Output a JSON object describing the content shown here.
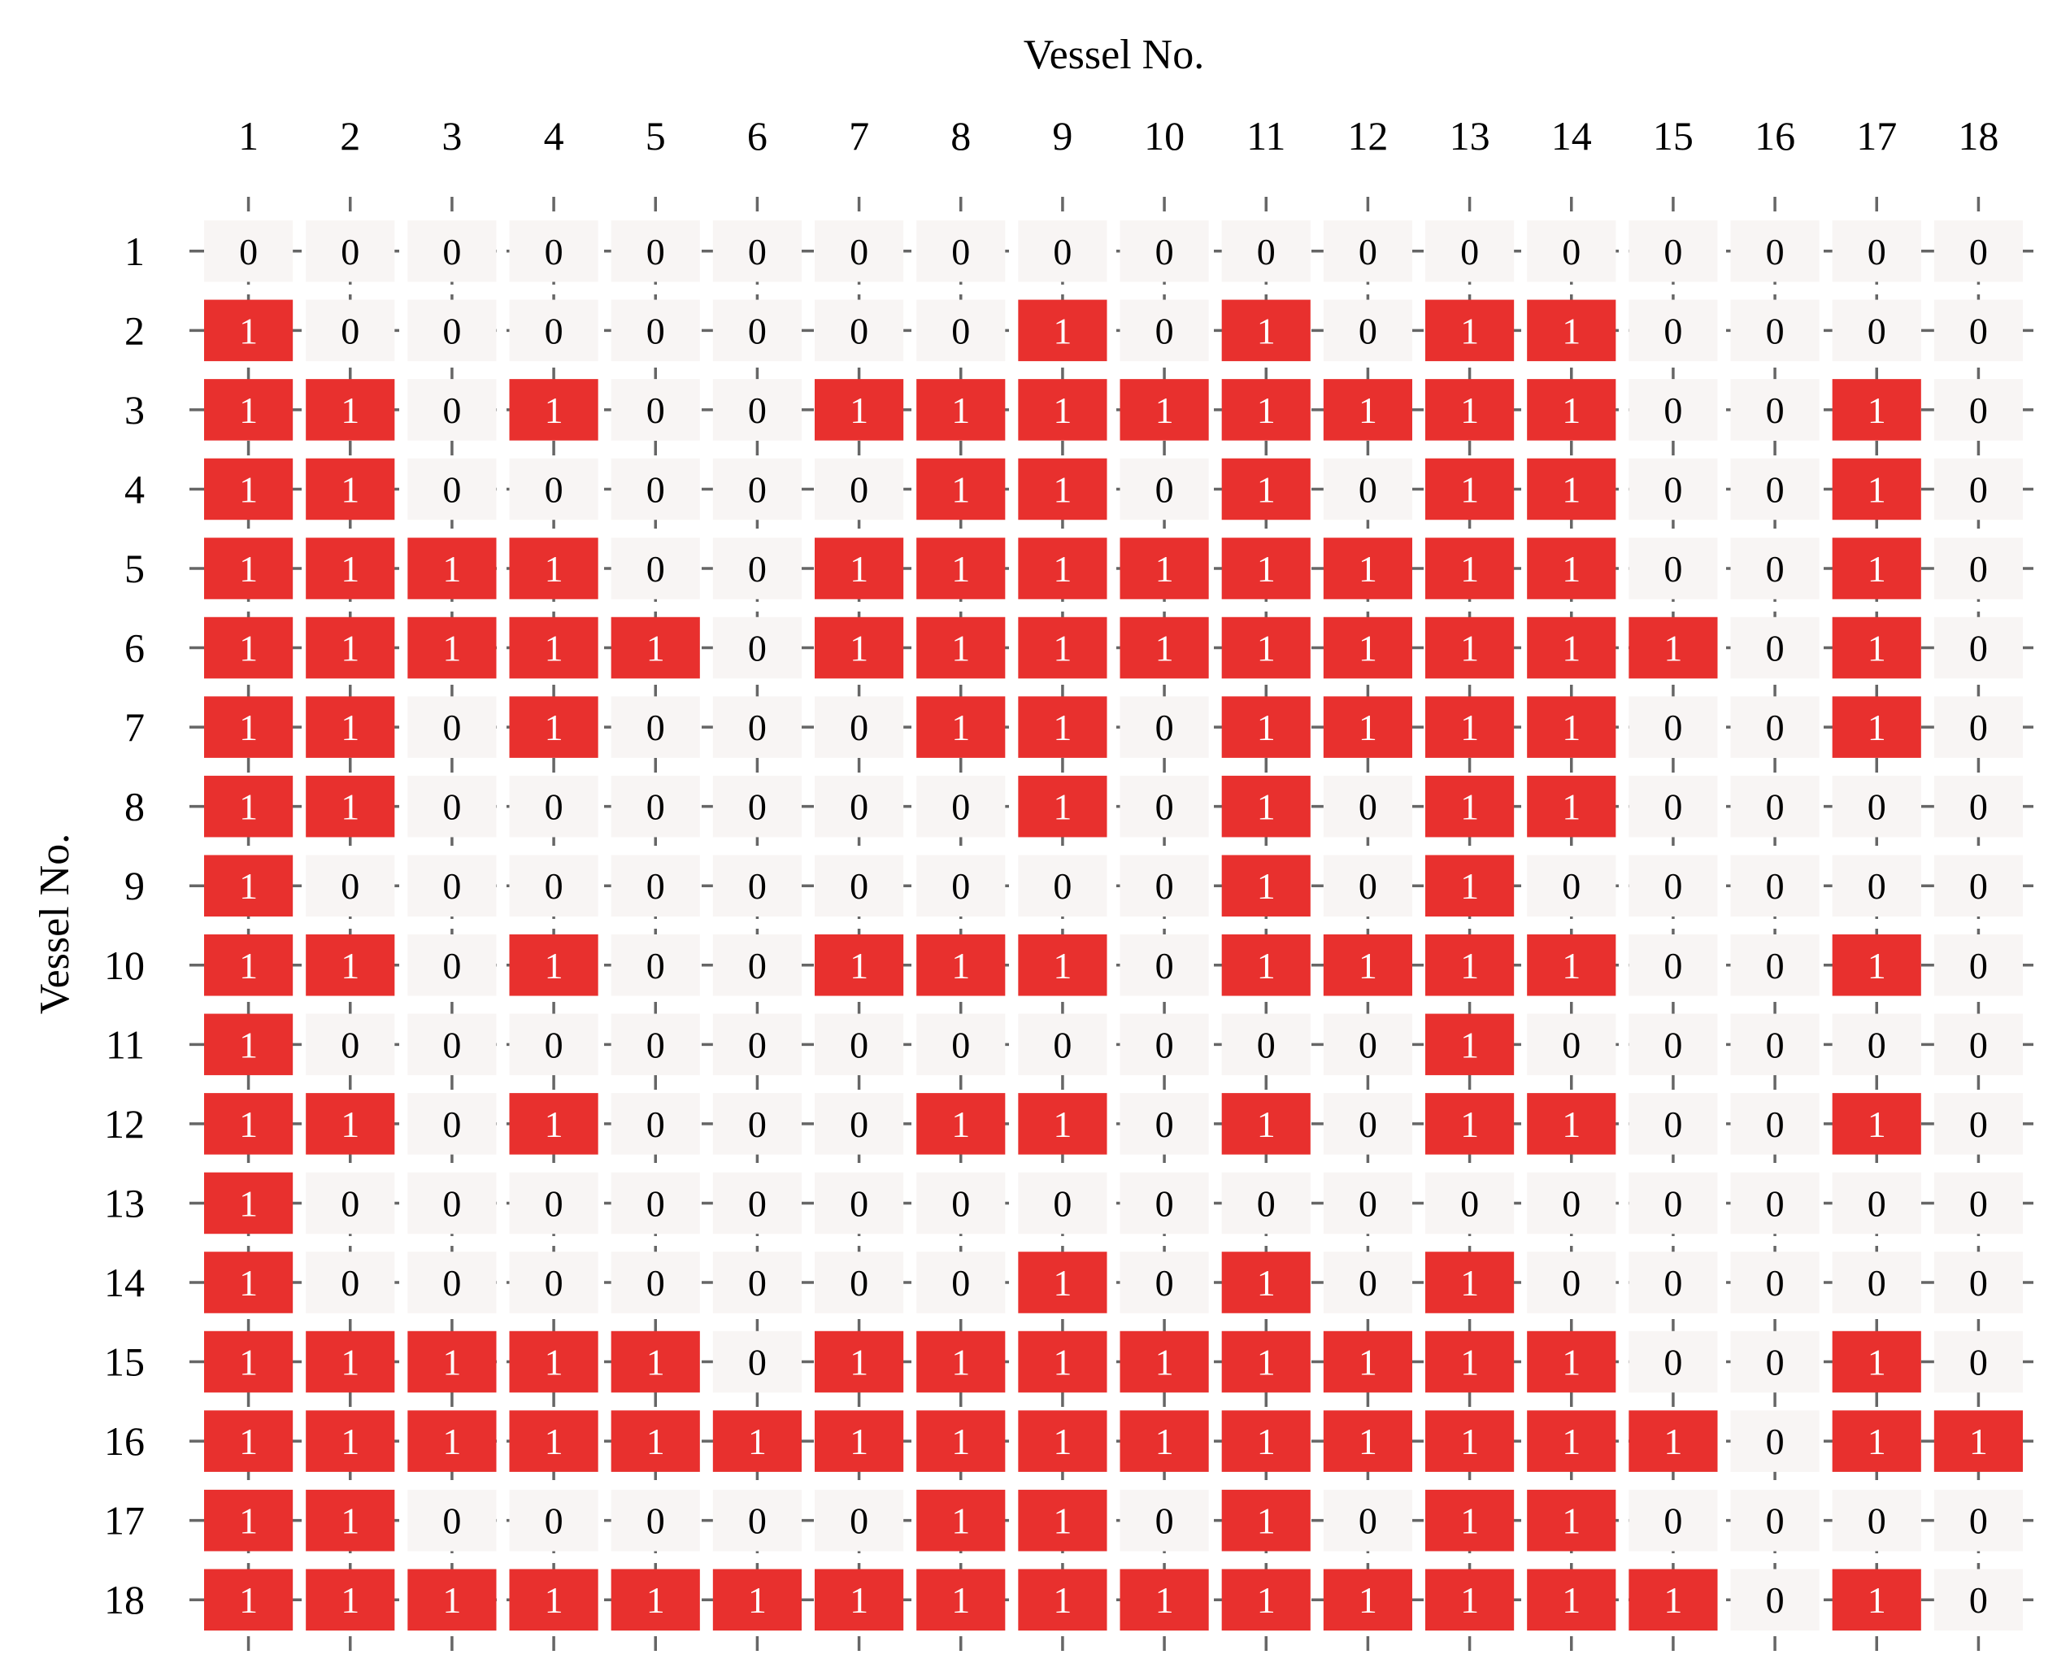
{
  "chart_data": {
    "type": "heatmap",
    "xlabel": "Vessel No.",
    "ylabel": "Vessel No.",
    "x_categories": [
      "1",
      "2",
      "3",
      "4",
      "5",
      "6",
      "7",
      "8",
      "9",
      "10",
      "11",
      "12",
      "13",
      "14",
      "15",
      "16",
      "17",
      "18"
    ],
    "y_categories": [
      "1",
      "2",
      "3",
      "4",
      "5",
      "6",
      "7",
      "8",
      "9",
      "10",
      "11",
      "12",
      "13",
      "14",
      "15",
      "16",
      "17",
      "18"
    ],
    "x_axis_position": "top",
    "grid": true,
    "colors": {
      "one": "#e8302e",
      "zero": "#f8f5f4",
      "text_on_one": "#ffffff",
      "text_on_zero": "#000000"
    },
    "values": [
      [
        0,
        0,
        0,
        0,
        0,
        0,
        0,
        0,
        0,
        0,
        0,
        0,
        0,
        0,
        0,
        0,
        0,
        0
      ],
      [
        1,
        0,
        0,
        0,
        0,
        0,
        0,
        0,
        1,
        0,
        1,
        0,
        1,
        1,
        0,
        0,
        0,
        0
      ],
      [
        1,
        1,
        0,
        1,
        0,
        0,
        1,
        1,
        1,
        1,
        1,
        1,
        1,
        1,
        0,
        0,
        1,
        0
      ],
      [
        1,
        1,
        0,
        0,
        0,
        0,
        0,
        1,
        1,
        0,
        1,
        0,
        1,
        1,
        0,
        0,
        1,
        0
      ],
      [
        1,
        1,
        1,
        1,
        0,
        0,
        1,
        1,
        1,
        1,
        1,
        1,
        1,
        1,
        0,
        0,
        1,
        0
      ],
      [
        1,
        1,
        1,
        1,
        1,
        0,
        1,
        1,
        1,
        1,
        1,
        1,
        1,
        1,
        1,
        0,
        1,
        0
      ],
      [
        1,
        1,
        0,
        1,
        0,
        0,
        0,
        1,
        1,
        0,
        1,
        1,
        1,
        1,
        0,
        0,
        1,
        0
      ],
      [
        1,
        1,
        0,
        0,
        0,
        0,
        0,
        0,
        1,
        0,
        1,
        0,
        1,
        1,
        0,
        0,
        0,
        0
      ],
      [
        1,
        0,
        0,
        0,
        0,
        0,
        0,
        0,
        0,
        0,
        1,
        0,
        1,
        0,
        0,
        0,
        0,
        0
      ],
      [
        1,
        1,
        0,
        1,
        0,
        0,
        1,
        1,
        1,
        0,
        1,
        1,
        1,
        1,
        0,
        0,
        1,
        0
      ],
      [
        1,
        0,
        0,
        0,
        0,
        0,
        0,
        0,
        0,
        0,
        0,
        0,
        1,
        0,
        0,
        0,
        0,
        0
      ],
      [
        1,
        1,
        0,
        1,
        0,
        0,
        0,
        1,
        1,
        0,
        1,
        0,
        1,
        1,
        0,
        0,
        1,
        0
      ],
      [
        1,
        0,
        0,
        0,
        0,
        0,
        0,
        0,
        0,
        0,
        0,
        0,
        0,
        0,
        0,
        0,
        0,
        0
      ],
      [
        1,
        0,
        0,
        0,
        0,
        0,
        0,
        0,
        1,
        0,
        1,
        0,
        1,
        0,
        0,
        0,
        0,
        0
      ],
      [
        1,
        1,
        1,
        1,
        1,
        0,
        1,
        1,
        1,
        1,
        1,
        1,
        1,
        1,
        0,
        0,
        1,
        0
      ],
      [
        1,
        1,
        1,
        1,
        1,
        1,
        1,
        1,
        1,
        1,
        1,
        1,
        1,
        1,
        1,
        0,
        1,
        1
      ],
      [
        1,
        1,
        0,
        0,
        0,
        0,
        0,
        1,
        1,
        0,
        1,
        0,
        1,
        1,
        0,
        0,
        0,
        0
      ],
      [
        1,
        1,
        1,
        1,
        1,
        1,
        1,
        1,
        1,
        1,
        1,
        1,
        1,
        1,
        1,
        0,
        1,
        0
      ]
    ]
  }
}
